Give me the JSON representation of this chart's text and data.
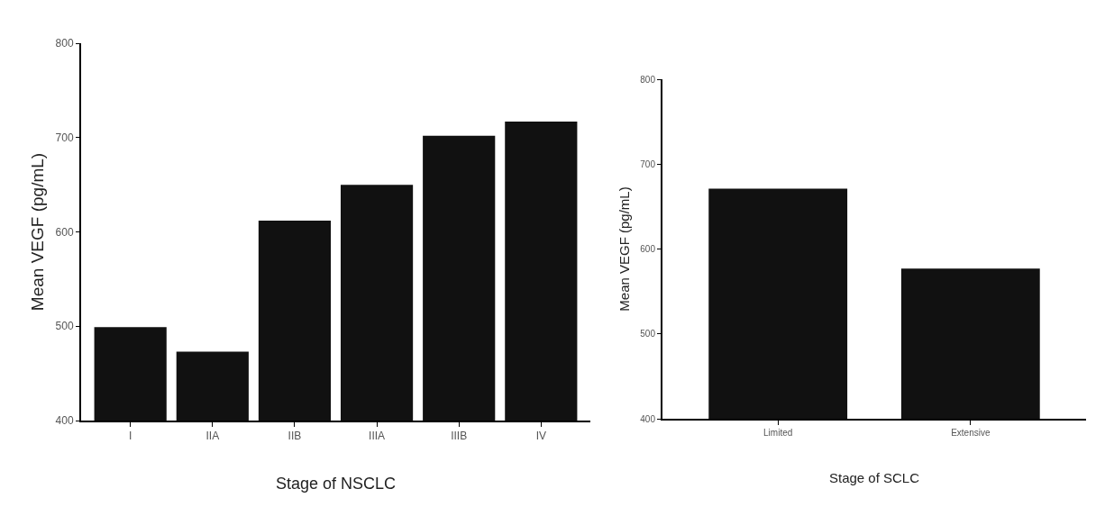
{
  "chart_data": [
    {
      "type": "bar",
      "xlabel": "Stage of NSCLC",
      "ylabel": "Mean VEGF (pg/mL)",
      "categories": [
        "I",
        "IIA",
        "IIB",
        "IIIA",
        "IIIB",
        "IV"
      ],
      "values": [
        499,
        473,
        612,
        650,
        702,
        717
      ],
      "color": "#111111",
      "ylim": [
        400,
        800
      ],
      "yticks": [
        400,
        500,
        600,
        700,
        800
      ]
    },
    {
      "type": "bar",
      "xlabel": "Stage of SCLC",
      "ylabel": "Mean VEGF (pg/mL)",
      "categories": [
        "Limited",
        "Extensive"
      ],
      "values": [
        671,
        577
      ],
      "color": "#111111",
      "ylim": [
        400,
        800
      ],
      "yticks": [
        400,
        500,
        600,
        700,
        800
      ]
    }
  ]
}
